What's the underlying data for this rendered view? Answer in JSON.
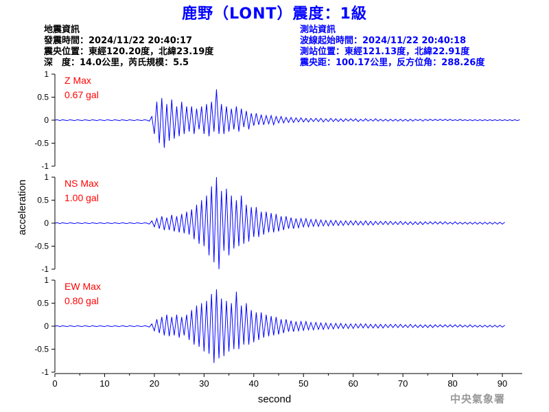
{
  "header": {
    "title": "鹿野（LONT）震度：1級"
  },
  "quake_info": {
    "heading": "地震資訊",
    "origin_time": "發震時間：2024/11/22 20:40:17",
    "epicenter": "震央位置：東經120.20度，北緯23.19度",
    "depth_magnitude": "深　度：14.0公里，芮氏規模：5.5"
  },
  "station_info": {
    "heading": "測站資訊",
    "wave_start": "波線起始時間：2024/11/22 20:40:18",
    "location": "測站位置：東經121.13度，北緯22.91度",
    "distance_azimuth": "震央距：100.17公里，反方位角：288.26度"
  },
  "footer": {
    "agency": "中央氣象署"
  },
  "colors": {
    "title": "#0000ff",
    "trace": "#0000ff",
    "max_label": "#ff0000",
    "axis": "#000000",
    "watermark": "#999999"
  },
  "chart_data": {
    "type": "line",
    "title": "鹿野（LONT）震度：1級",
    "xlabel": "second",
    "ylabel": "acceleration",
    "xlim": [
      0,
      94
    ],
    "xticks": [
      0,
      10,
      20,
      30,
      40,
      50,
      60,
      70,
      80,
      90
    ],
    "xtick_labels": [
      "0",
      "10",
      "20",
      "30",
      "40",
      "50",
      "60",
      "70",
      "80",
      "90"
    ],
    "grid": false,
    "sample_interval": 0.5,
    "series": [
      {
        "name": "Z",
        "max_label": "Z Max",
        "max_value_label": "0.67 gal",
        "ylim": [
          -1,
          1
        ],
        "yticks": [
          -1,
          -0.5,
          0,
          0.5,
          1
        ],
        "ytick_labels": [
          "-1",
          "-0.5",
          "0",
          "0.5",
          "1"
        ],
        "x_start": 0,
        "values": [
          0,
          0.01,
          -0.01,
          0.01,
          0,
          -0.01,
          0.01,
          0,
          -0.01,
          0.01,
          0,
          -0.01,
          0.01,
          0,
          -0.01,
          0.01,
          0,
          -0.01,
          0.01,
          0,
          -0.01,
          0.01,
          0,
          -0.01,
          0.01,
          0,
          -0.01,
          0.01,
          0,
          -0.01,
          0.01,
          0,
          -0.01,
          0.01,
          0,
          -0.01,
          0.01,
          0,
          -0.02,
          0.08,
          -0.3,
          0.4,
          -0.5,
          0.48,
          -0.6,
          0.35,
          -0.45,
          0.45,
          -0.4,
          0.3,
          -0.35,
          0.4,
          -0.3,
          0.3,
          -0.25,
          0.3,
          -0.3,
          0.25,
          -0.2,
          0.3,
          -0.3,
          0.35,
          -0.35,
          0.4,
          -0.25,
          0.67,
          -0.3,
          0.35,
          -0.3,
          0.3,
          -0.25,
          0.25,
          -0.2,
          0.3,
          -0.25,
          0.25,
          -0.15,
          0.2,
          -0.2,
          0.15,
          -0.12,
          0.15,
          -0.1,
          0.12,
          -0.1,
          0.1,
          -0.08,
          0.1,
          -0.1,
          0.08,
          -0.06,
          0.08,
          -0.06,
          0.06,
          -0.05,
          0.06,
          -0.05,
          0.05,
          -0.04,
          0.05,
          -0.04,
          0.04,
          -0.04,
          0.04,
          -0.03,
          0.04,
          -0.03,
          0.04,
          -0.04,
          0.03,
          -0.03,
          0.04,
          -0.03,
          0.03,
          -0.03,
          0.03,
          -0.03,
          0.03,
          -0.02,
          0.03,
          -0.02,
          0.03,
          -0.03,
          0.02,
          -0.02,
          0.03,
          -0.02,
          0.02,
          -0.02,
          0.03,
          -0.02,
          0.02,
          -0.02,
          0.02,
          -0.02,
          0.02,
          -0.02,
          0.02,
          -0.02,
          0.02,
          -0.02,
          0.02,
          -0.02,
          0.02,
          -0.02,
          0.02,
          -0.01,
          0.02,
          -0.02,
          0.02,
          -0.01,
          0.02,
          -0.01,
          0.02,
          -0.01,
          0.02,
          -0.01,
          0.02,
          -0.01,
          0.02,
          -0.01,
          0.01,
          -0.01,
          0.02,
          -0.01,
          0.01,
          -0.01,
          0.01,
          -0.01,
          0.01,
          -0.01,
          0.01,
          -0.01,
          0.01,
          -0.01,
          0.01,
          -0.01,
          0.01,
          -0.01,
          0.01,
          -0.01,
          0.01,
          -0.01,
          0.01,
          -0.01,
          0.01,
          -0.01,
          0.01
        ]
      },
      {
        "name": "NS",
        "max_label": "NS Max",
        "max_value_label": "1.00 gal",
        "ylim": [
          -1,
          1
        ],
        "yticks": [
          -1,
          -0.5,
          0,
          0.5,
          1
        ],
        "ytick_labels": [
          "-1",
          "-0.5",
          "0",
          "0.5",
          "1"
        ],
        "x_start": 0,
        "values": [
          0,
          0.01,
          -0.01,
          0.01,
          0,
          -0.01,
          0.01,
          0,
          -0.01,
          0.01,
          0,
          -0.01,
          0.01,
          0,
          -0.01,
          0.01,
          0,
          -0.01,
          0.01,
          0,
          -0.01,
          0.01,
          0,
          -0.01,
          0.01,
          0,
          -0.01,
          0.01,
          0,
          -0.01,
          0.01,
          0,
          -0.01,
          0.01,
          0,
          -0.01,
          0.01,
          0,
          -0.02,
          0.05,
          -0.08,
          0.1,
          -0.12,
          0.15,
          -0.15,
          0.12,
          -0.15,
          0.18,
          -0.18,
          0.15,
          -0.2,
          0.2,
          -0.22,
          0.25,
          -0.25,
          0.3,
          -0.35,
          0.4,
          -0.45,
          0.5,
          -0.5,
          0.6,
          -0.7,
          0.8,
          -0.85,
          1.0,
          -1.0,
          0.7,
          -0.6,
          0.75,
          -0.7,
          0.6,
          -0.55,
          0.5,
          -0.5,
          0.6,
          -0.45,
          0.4,
          -0.4,
          0.35,
          -0.3,
          0.35,
          -0.3,
          0.25,
          -0.25,
          0.25,
          -0.2,
          0.22,
          -0.2,
          0.2,
          -0.18,
          0.15,
          -0.15,
          0.15,
          -0.12,
          0.12,
          -0.12,
          0.1,
          -0.1,
          0.1,
          -0.08,
          0.1,
          -0.08,
          0.08,
          -0.07,
          0.08,
          -0.07,
          0.07,
          -0.06,
          0.06,
          -0.06,
          0.06,
          -0.05,
          0.06,
          -0.05,
          0.05,
          -0.05,
          0.05,
          -0.04,
          0.05,
          -0.04,
          0.05,
          -0.04,
          0.04,
          -0.04,
          0.05,
          -0.04,
          0.04,
          -0.04,
          0.04,
          -0.03,
          0.04,
          -0.03,
          0.04,
          -0.03,
          0.04,
          -0.03,
          0.03,
          -0.03,
          0.04,
          -0.03,
          0.03,
          -0.03,
          0.03,
          -0.03,
          0.03,
          -0.03,
          0.03,
          -0.03,
          0.03,
          -0.02,
          0.03,
          -0.02,
          0.03,
          -0.02,
          0.03,
          -0.02,
          0.03,
          -0.02,
          0.02,
          -0.02,
          0.03,
          -0.02,
          0.02,
          -0.02,
          0.02,
          -0.02,
          0.02,
          -0.02,
          0.02,
          -0.02,
          0.02,
          -0.02,
          0.02,
          -0.02,
          0.02,
          -0.02,
          0.02,
          -0.02,
          0.02,
          -0.02,
          0.02
        ]
      },
      {
        "name": "EW",
        "max_label": "EW Max",
        "max_value_label": "0.80 gal",
        "ylim": [
          -1,
          1
        ],
        "yticks": [
          -1,
          -0.5,
          0,
          0.5,
          1
        ],
        "ytick_labels": [
          "-1",
          "-0.5",
          "0",
          "0.5",
          "1"
        ],
        "x_start": 0,
        "values": [
          0,
          0.01,
          -0.01,
          0.01,
          0,
          -0.01,
          0.01,
          0,
          -0.01,
          0.01,
          0,
          -0.01,
          0.01,
          0,
          -0.01,
          0.01,
          0,
          -0.01,
          0.01,
          0,
          -0.01,
          0.01,
          0,
          -0.01,
          0.01,
          0,
          -0.01,
          0.01,
          0,
          -0.01,
          0.01,
          0,
          -0.01,
          0.01,
          0,
          -0.01,
          0.01,
          0,
          -0.02,
          0.05,
          -0.1,
          0.15,
          -0.15,
          0.2,
          -0.2,
          0.25,
          -0.22,
          0.2,
          -0.2,
          0.25,
          -0.25,
          0.2,
          -0.2,
          0.25,
          -0.3,
          0.35,
          -0.4,
          0.45,
          -0.45,
          0.5,
          -0.55,
          0.55,
          -0.6,
          0.7,
          -0.8,
          0.8,
          -0.7,
          0.6,
          -0.65,
          0.55,
          -0.55,
          0.5,
          -0.5,
          0.75,
          -0.5,
          0.45,
          -0.4,
          0.5,
          -0.4,
          0.35,
          -0.35,
          0.3,
          -0.3,
          0.3,
          -0.25,
          0.25,
          -0.22,
          0.22,
          -0.2,
          0.2,
          -0.18,
          0.15,
          -0.15,
          0.15,
          -0.12,
          0.12,
          -0.12,
          0.1,
          -0.1,
          0.1,
          -0.09,
          0.1,
          -0.08,
          0.08,
          -0.08,
          0.08,
          -0.07,
          0.07,
          -0.07,
          0.07,
          -0.06,
          0.06,
          -0.06,
          0.06,
          -0.05,
          0.06,
          -0.05,
          0.05,
          -0.05,
          0.05,
          -0.05,
          0.05,
          -0.04,
          0.05,
          -0.04,
          0.05,
          -0.04,
          0.04,
          -0.04,
          0.04,
          -0.04,
          0.04,
          -0.04,
          0.04,
          -0.03,
          0.04,
          -0.03,
          0.04,
          -0.03,
          0.04,
          -0.03,
          0.03,
          -0.03,
          0.04,
          -0.03,
          0.03,
          -0.03,
          0.03,
          -0.03,
          0.03,
          -0.03,
          0.03,
          -0.03,
          0.03,
          -0.02,
          0.03,
          -0.02,
          0.03,
          -0.02,
          0.03,
          -0.02,
          0.03,
          -0.02,
          0.03,
          -0.02,
          0.02,
          -0.02,
          0.03,
          -0.02,
          0.02,
          -0.02,
          0.02,
          -0.02,
          0.02,
          -0.02,
          0.02,
          -0.02,
          0.02,
          -0.02,
          0.02,
          -0.02,
          0.02
        ]
      }
    ]
  }
}
